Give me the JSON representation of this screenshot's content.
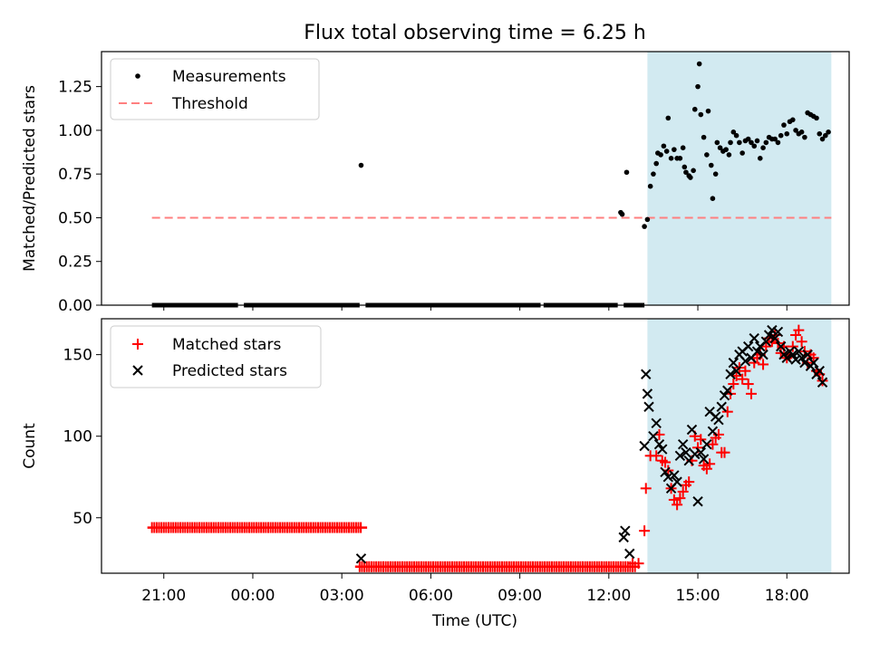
{
  "title": "Flux total observing time = 6.25 h",
  "xlabel": "Time (UTC)",
  "xticks": [
    "21:00",
    "00:00",
    "03:00",
    "06:00",
    "09:00",
    "12:00",
    "15:00",
    "18:00"
  ],
  "colors": {
    "measurements": "#000000",
    "threshold": "#ff7f7f",
    "matched": "#ff0000",
    "predicted": "#000000",
    "span": "#add8e6"
  },
  "chart_data": [
    {
      "type": "scatter",
      "ylabel": "Matched/Predicted stars",
      "ylim": [
        0,
        1.45
      ],
      "yticks": [
        "0.00",
        "0.25",
        "0.50",
        "0.75",
        "1.00",
        "1.25"
      ],
      "xlim_hours": [
        18.9,
        20.0
      ],
      "legend": [
        "Measurements",
        "Threshold"
      ],
      "threshold": 0.5,
      "highlight_span_hours": [
        37.3,
        43.5
      ],
      "zero_segments_hours": [
        [
          20.6,
          23.5
        ],
        [
          23.7,
          27.6
        ],
        [
          27.8,
          33.7
        ],
        [
          33.8,
          36.3
        ],
        [
          36.5,
          37.2
        ]
      ],
      "points": [
        [
          27.65,
          0.8
        ],
        [
          36.4,
          0.53
        ],
        [
          36.45,
          0.52
        ],
        [
          36.6,
          0.76
        ],
        [
          37.2,
          0.45
        ],
        [
          37.3,
          0.49
        ],
        [
          37.4,
          0.68
        ],
        [
          37.5,
          0.75
        ],
        [
          37.6,
          0.81
        ],
        [
          37.65,
          0.87
        ],
        [
          37.75,
          0.86
        ],
        [
          37.85,
          0.91
        ],
        [
          37.95,
          0.88
        ],
        [
          38.0,
          1.07
        ],
        [
          38.1,
          0.84
        ],
        [
          38.2,
          0.89
        ],
        [
          38.3,
          0.84
        ],
        [
          38.4,
          0.84
        ],
        [
          38.5,
          0.9
        ],
        [
          38.55,
          0.79
        ],
        [
          38.6,
          0.76
        ],
        [
          38.7,
          0.74
        ],
        [
          38.75,
          0.73
        ],
        [
          38.85,
          0.77
        ],
        [
          38.9,
          1.12
        ],
        [
          39.0,
          1.25
        ],
        [
          39.05,
          1.38
        ],
        [
          39.1,
          1.09
        ],
        [
          39.2,
          0.96
        ],
        [
          39.3,
          0.86
        ],
        [
          39.35,
          1.11
        ],
        [
          39.45,
          0.8
        ],
        [
          39.5,
          0.61
        ],
        [
          39.6,
          0.75
        ],
        [
          39.65,
          0.93
        ],
        [
          39.75,
          0.9
        ],
        [
          39.85,
          0.88
        ],
        [
          39.95,
          0.89
        ],
        [
          40.05,
          0.86
        ],
        [
          40.1,
          0.93
        ],
        [
          40.2,
          0.99
        ],
        [
          40.3,
          0.97
        ],
        [
          40.4,
          0.93
        ],
        [
          40.5,
          0.87
        ],
        [
          40.6,
          0.94
        ],
        [
          40.7,
          0.95
        ],
        [
          40.8,
          0.93
        ],
        [
          40.9,
          0.91
        ],
        [
          41.0,
          0.94
        ],
        [
          41.1,
          0.84
        ],
        [
          41.2,
          0.9
        ],
        [
          41.3,
          0.93
        ],
        [
          41.4,
          0.96
        ],
        [
          41.5,
          0.95
        ],
        [
          41.6,
          0.95
        ],
        [
          41.7,
          0.93
        ],
        [
          41.8,
          0.97
        ],
        [
          41.9,
          1.03
        ],
        [
          42.0,
          0.98
        ],
        [
          42.1,
          1.05
        ],
        [
          42.2,
          1.06
        ],
        [
          42.3,
          1.0
        ],
        [
          42.4,
          0.98
        ],
        [
          42.5,
          0.99
        ],
        [
          42.6,
          0.96
        ],
        [
          42.7,
          1.1
        ],
        [
          42.8,
          1.09
        ],
        [
          42.9,
          1.08
        ],
        [
          43.0,
          1.07
        ],
        [
          43.1,
          0.98
        ],
        [
          43.2,
          0.95
        ],
        [
          43.3,
          0.97
        ],
        [
          43.4,
          0.99
        ]
      ]
    },
    {
      "type": "scatter",
      "ylabel": "Count",
      "ylim": [
        16,
        172
      ],
      "yticks": [
        "50",
        "100",
        "150"
      ],
      "legend": [
        "Matched stars",
        "Predicted stars"
      ],
      "highlight_span_hours": [
        37.3,
        43.5
      ],
      "matched_constant_segments": [
        {
          "from_hours": 20.6,
          "to_hours": 27.7,
          "value": 44
        },
        {
          "from_hours": 27.6,
          "to_hours": 36.9,
          "value": 20
        }
      ],
      "matched": [
        [
          36.8,
          22
        ],
        [
          37.0,
          22
        ],
        [
          37.2,
          42
        ],
        [
          37.25,
          68
        ],
        [
          37.4,
          88
        ],
        [
          37.6,
          88
        ],
        [
          37.7,
          101
        ],
        [
          37.8,
          85
        ],
        [
          37.9,
          84
        ],
        [
          38.0,
          79
        ],
        [
          38.1,
          68
        ],
        [
          38.2,
          61
        ],
        [
          38.3,
          58
        ],
        [
          38.4,
          62
        ],
        [
          38.5,
          66
        ],
        [
          38.6,
          70
        ],
        [
          38.7,
          72
        ],
        [
          38.8,
          85
        ],
        [
          38.9,
          100
        ],
        [
          39.0,
          93
        ],
        [
          39.1,
          98
        ],
        [
          39.2,
          82
        ],
        [
          39.3,
          80
        ],
        [
          39.4,
          83
        ],
        [
          39.5,
          95
        ],
        [
          39.6,
          99
        ],
        [
          39.7,
          101
        ],
        [
          39.8,
          90
        ],
        [
          39.9,
          90
        ],
        [
          40.0,
          115
        ],
        [
          40.1,
          126
        ],
        [
          40.2,
          132
        ],
        [
          40.3,
          137
        ],
        [
          40.4,
          142
        ],
        [
          40.5,
          135
        ],
        [
          40.6,
          140
        ],
        [
          40.7,
          132
        ],
        [
          40.8,
          126
        ],
        [
          40.9,
          145
        ],
        [
          41.0,
          148
        ],
        [
          41.1,
          150
        ],
        [
          41.2,
          144
        ],
        [
          41.3,
          155
        ],
        [
          41.4,
          160
        ],
        [
          41.5,
          158
        ],
        [
          41.6,
          162
        ],
        [
          41.7,
          157
        ],
        [
          41.8,
          151
        ],
        [
          41.9,
          155
        ],
        [
          42.0,
          148
        ],
        [
          42.1,
          150
        ],
        [
          42.2,
          155
        ],
        [
          42.3,
          162
        ],
        [
          42.4,
          165
        ],
        [
          42.5,
          158
        ],
        [
          42.6,
          152
        ],
        [
          42.7,
          145
        ],
        [
          42.8,
          150
        ],
        [
          42.9,
          148
        ],
        [
          43.0,
          140
        ],
        [
          43.1,
          138
        ],
        [
          43.2,
          134
        ]
      ],
      "predicted": [
        [
          27.65,
          25
        ],
        [
          36.5,
          38
        ],
        [
          36.55,
          42
        ],
        [
          36.7,
          28
        ],
        [
          37.2,
          94
        ],
        [
          37.25,
          138
        ],
        [
          37.3,
          126
        ],
        [
          37.35,
          118
        ],
        [
          37.5,
          100
        ],
        [
          37.6,
          108
        ],
        [
          37.7,
          95
        ],
        [
          37.8,
          92
        ],
        [
          37.9,
          78
        ],
        [
          38.0,
          75
        ],
        [
          38.1,
          68
        ],
        [
          38.2,
          76
        ],
        [
          38.3,
          72
        ],
        [
          38.4,
          88
        ],
        [
          38.5,
          95
        ],
        [
          38.6,
          90
        ],
        [
          38.7,
          85
        ],
        [
          38.8,
          104
        ],
        [
          38.9,
          89
        ],
        [
          39.0,
          60
        ],
        [
          39.1,
          90
        ],
        [
          39.2,
          86
        ],
        [
          39.3,
          95
        ],
        [
          39.4,
          115
        ],
        [
          39.5,
          103
        ],
        [
          39.6,
          112
        ],
        [
          39.7,
          110
        ],
        [
          39.8,
          118
        ],
        [
          39.9,
          125
        ],
        [
          40.0,
          128
        ],
        [
          40.1,
          138
        ],
        [
          40.2,
          145
        ],
        [
          40.3,
          140
        ],
        [
          40.4,
          150
        ],
        [
          40.5,
          152
        ],
        [
          40.6,
          146
        ],
        [
          40.7,
          155
        ],
        [
          40.8,
          148
        ],
        [
          40.9,
          160
        ],
        [
          41.0,
          152
        ],
        [
          41.1,
          155
        ],
        [
          41.2,
          150
        ],
        [
          41.3,
          158
        ],
        [
          41.4,
          162
        ],
        [
          41.5,
          165
        ],
        [
          41.6,
          160
        ],
        [
          41.7,
          164
        ],
        [
          41.8,
          155
        ],
        [
          41.9,
          150
        ],
        [
          42.0,
          148
        ],
        [
          42.1,
          152
        ],
        [
          42.2,
          150
        ],
        [
          42.3,
          147
        ],
        [
          42.4,
          152
        ],
        [
          42.5,
          148
        ],
        [
          42.6,
          145
        ],
        [
          42.7,
          150
        ],
        [
          42.8,
          143
        ],
        [
          42.9,
          145
        ],
        [
          43.0,
          138
        ],
        [
          43.1,
          140
        ],
        [
          43.2,
          133
        ]
      ]
    }
  ]
}
